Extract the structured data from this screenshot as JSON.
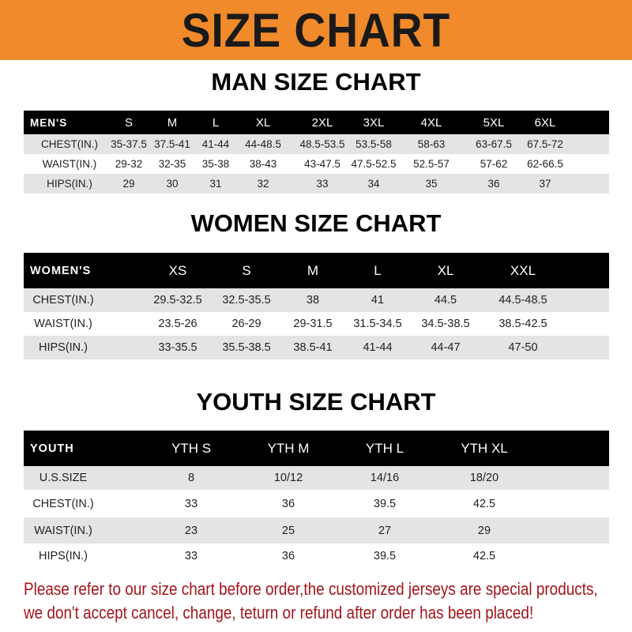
{
  "title": "SIZE CHART",
  "colors": {
    "banner": "#f08a2b",
    "header_row": "#000000",
    "stripe": "#e4e4e4",
    "note": "#a3151b"
  },
  "men": {
    "title": "MAN SIZE CHART",
    "header": [
      "MEN'S",
      "S",
      "M",
      "L",
      "XL",
      "2XL",
      "3XL",
      "4XL",
      "5XL",
      "6XL"
    ],
    "rows": [
      [
        "CHEST(IN.)",
        "35-37.5",
        "37.5-41",
        "41-44",
        "44-48.5",
        "48.5-53.5",
        "53.5-58",
        "58-63",
        "63-67.5",
        "67.5-72"
      ],
      [
        "WAIST(IN.)",
        "29-32",
        "32-35",
        "35-38",
        "38-43",
        "43-47.5",
        "47.5-52.5",
        "52.5-57",
        "57-62",
        "62-66.5"
      ],
      [
        "HIPS(IN.)",
        "29",
        "30",
        "31",
        "32",
        "33",
        "34",
        "35",
        "36",
        "37"
      ]
    ]
  },
  "women": {
    "title": "WOMEN SIZE CHART",
    "header": [
      "WOMEN'S",
      "XS",
      "S",
      "M",
      "L",
      "XL",
      "XXL"
    ],
    "rows": [
      [
        "CHEST(IN.)",
        "29.5-32.5",
        "32.5-35.5",
        "38",
        "41",
        "44.5",
        "44.5-48.5"
      ],
      [
        "WAIST(IN.)",
        "23.5-26",
        "26-29",
        "29-31.5",
        "31.5-34.5",
        "34.5-38.5",
        "38.5-42.5"
      ],
      [
        "HIPS(IN.)",
        "33-35.5",
        "35.5-38.5",
        "38.5-41",
        "41-44",
        "44-47",
        "47-50"
      ]
    ]
  },
  "youth": {
    "title": "YOUTH SIZE CHART",
    "header": [
      "YOUTH",
      "YTH S",
      "YTH M",
      "YTH L",
      "YTH XL"
    ],
    "rows": [
      [
        "U.S.SIZE",
        "8",
        "10/12",
        "14/16",
        "18/20"
      ],
      [
        "CHEST(IN.)",
        "33",
        "36",
        "39.5",
        "42.5"
      ],
      [
        "WAIST(IN.)",
        "23",
        "25",
        "27",
        "29"
      ],
      [
        "HIPS(IN.)",
        "33",
        "36",
        "39.5",
        "42.5"
      ]
    ]
  },
  "note": {
    "line1": "Please refer to our size chart before order,the customized jerseys are special products,",
    "line2": "we don't accept cancel, change, teturn or refund after order has been placed!"
  }
}
